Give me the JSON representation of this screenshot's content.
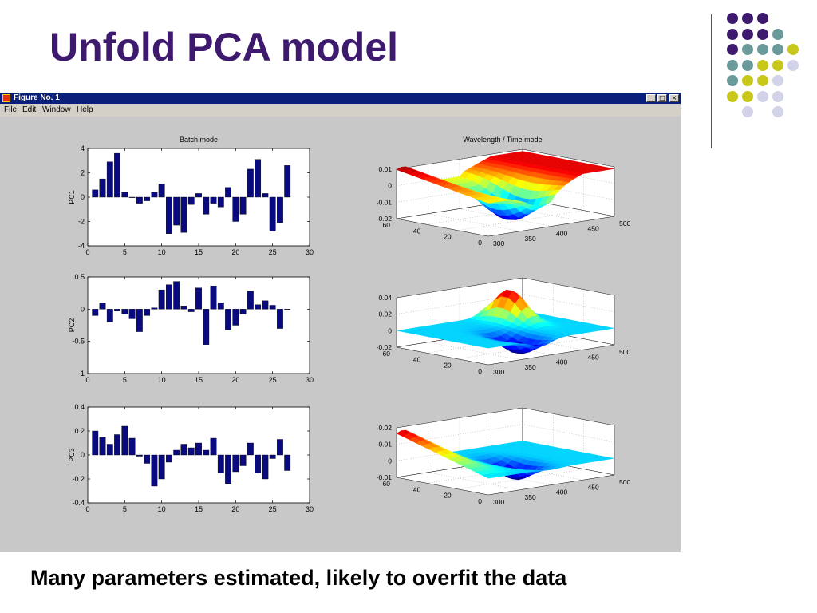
{
  "slide": {
    "title": "Unfold PCA model",
    "caption": "Many parameters estimated, likely to overfit the data"
  },
  "window": {
    "title": "Figure No. 1",
    "menu": [
      "File",
      "Edit",
      "Window",
      "Help"
    ],
    "buttons": {
      "minimize": "_",
      "maximize": "□",
      "close": "×"
    }
  },
  "colors": {
    "title": "#3d1a6e",
    "bar": "#0a0a80",
    "dot_purple": "#3d1a6e",
    "dot_teal": "#6a9a9a",
    "dot_yellow": "#c8c81a",
    "dot_lavender": "#d2d2e8"
  },
  "decor_dots": [
    [
      "purple",
      "purple",
      "purple",
      null,
      null
    ],
    [
      "purple",
      "purple",
      "purple",
      "teal",
      null
    ],
    [
      "purple",
      "teal",
      "teal",
      "teal",
      "yellow"
    ],
    [
      "teal",
      "teal",
      "yellow",
      "yellow",
      "lavender"
    ],
    [
      "teal",
      "yellow",
      "yellow",
      "lavender",
      null
    ],
    [
      "yellow",
      "yellow",
      "lavender",
      "lavender",
      null
    ],
    [
      null,
      "lavender",
      null,
      "lavender",
      null
    ]
  ],
  "chart_data": [
    {
      "type": "bar",
      "title": "Batch mode",
      "ylabel": "PC1",
      "xlim": [
        0,
        30
      ],
      "ylim": [
        -4,
        4
      ],
      "xticks": [
        "0",
        "5",
        "10",
        "15",
        "20",
        "25",
        "30"
      ],
      "yticks": [
        "4",
        "2",
        "0",
        "-2",
        "-4"
      ],
      "x": [
        1,
        2,
        3,
        4,
        5,
        6,
        7,
        8,
        9,
        10,
        11,
        12,
        13,
        14,
        15,
        16,
        17,
        18,
        19,
        20,
        21,
        22,
        23,
        24,
        25,
        26,
        27
      ],
      "values": [
        0.6,
        1.5,
        2.9,
        3.6,
        0.4,
        0.0,
        -0.5,
        -0.3,
        0.4,
        1.1,
        -3.0,
        -2.3,
        -2.9,
        -0.6,
        0.3,
        -1.4,
        -0.5,
        -0.8,
        0.8,
        -2.0,
        -1.4,
        2.3,
        3.1,
        0.3,
        -2.8,
        -2.1,
        2.6
      ]
    },
    {
      "type": "bar",
      "title": "",
      "ylabel": "PC2",
      "xlim": [
        0,
        30
      ],
      "ylim": [
        -1,
        0.5
      ],
      "xticks": [
        "0",
        "5",
        "10",
        "15",
        "20",
        "25",
        "30"
      ],
      "yticks": [
        "0.5",
        "0",
        "-0.5",
        "-1"
      ],
      "x": [
        1,
        2,
        3,
        4,
        5,
        6,
        7,
        8,
        9,
        10,
        11,
        12,
        13,
        14,
        15,
        16,
        17,
        18,
        19,
        20,
        21,
        22,
        23,
        24,
        25,
        26,
        27
      ],
      "values": [
        -0.1,
        0.1,
        -0.2,
        -0.03,
        -0.08,
        -0.15,
        -0.35,
        -0.1,
        0.02,
        0.3,
        0.38,
        0.43,
        0.05,
        -0.04,
        0.33,
        -0.55,
        0.36,
        0.1,
        -0.32,
        -0.25,
        -0.08,
        0.28,
        0.07,
        0.13,
        0.06,
        -0.3,
        0.0
      ]
    },
    {
      "type": "bar",
      "title": "",
      "ylabel": "PC3",
      "xlim": [
        0,
        30
      ],
      "ylim": [
        -0.4,
        0.4
      ],
      "xticks": [
        "0",
        "5",
        "10",
        "15",
        "20",
        "25",
        "30"
      ],
      "yticks": [
        "0.4",
        "0.2",
        "0",
        "-0.2",
        "-0.4"
      ],
      "x": [
        1,
        2,
        3,
        4,
        5,
        6,
        7,
        8,
        9,
        10,
        11,
        12,
        13,
        14,
        15,
        16,
        17,
        18,
        19,
        20,
        21,
        22,
        23,
        24,
        25,
        26,
        27
      ],
      "values": [
        0.2,
        0.15,
        0.09,
        0.17,
        0.24,
        0.14,
        -0.01,
        -0.07,
        -0.26,
        -0.2,
        -0.06,
        0.04,
        0.09,
        0.06,
        0.1,
        0.04,
        0.14,
        -0.15,
        -0.24,
        -0.14,
        -0.09,
        0.1,
        -0.15,
        -0.2,
        -0.03,
        0.13,
        -0.13
      ]
    },
    {
      "type": "surface",
      "title": "Wavelength / Time mode",
      "zticks": [
        "0.01",
        "0",
        "-0.01",
        "-0.02"
      ],
      "xticks": [
        "300",
        "350",
        "400",
        "450",
        "500"
      ],
      "yticks": [
        "0",
        "20",
        "40",
        "60"
      ],
      "zlim": [
        -0.02,
        0.01
      ],
      "shape": "red ridge at high time low wavelength, blue trough near 350-400, flat plateau rising toward 500"
    },
    {
      "type": "surface",
      "title": "",
      "zticks": [
        "0.04",
        "0.02",
        "0",
        "-0.02"
      ],
      "xticks": [
        "300",
        "350",
        "400",
        "450",
        "500"
      ],
      "yticks": [
        "0",
        "20",
        "40",
        "60"
      ],
      "zlim": [
        -0.02,
        0.04
      ],
      "shape": "cyan plateau with red peak near 450 and blue trough near 350"
    },
    {
      "type": "surface",
      "title": "",
      "zticks": [
        "0.02",
        "0.01",
        "0",
        "-0.01"
      ],
      "xticks": [
        "300",
        "350",
        "400",
        "450",
        "500"
      ],
      "yticks": [
        "0",
        "20",
        "40",
        "60"
      ],
      "zlim": [
        -0.01,
        0.02
      ],
      "shape": "red ridge at high time low wavelength, blue trough near 375"
    }
  ]
}
